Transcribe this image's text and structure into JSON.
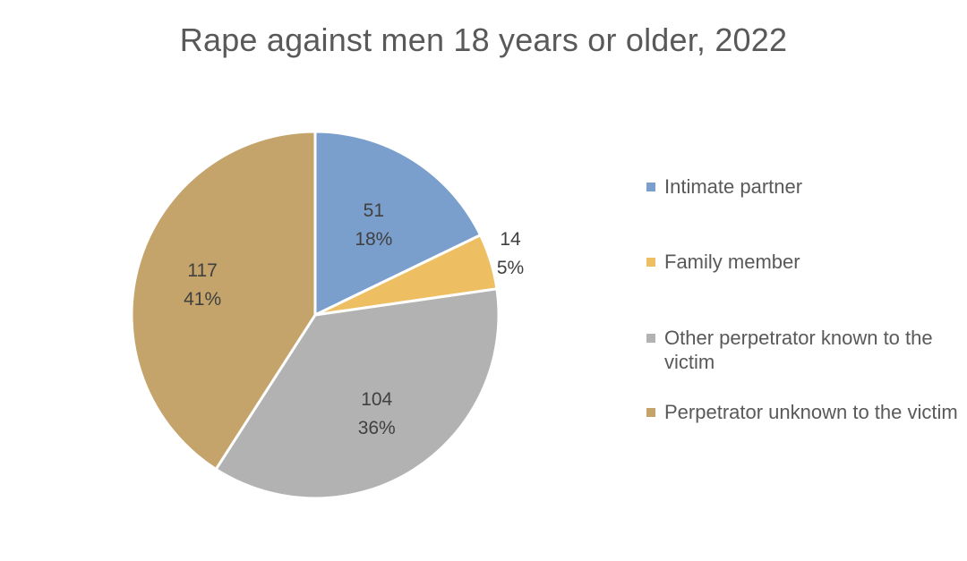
{
  "chart_data": {
    "type": "pie",
    "title": "Rape against men 18 years or older, 2022",
    "legend_position": "right",
    "slices": [
      {
        "label": "Intimate partner",
        "value": 51,
        "percent": "18%",
        "color": "#7A9FCD"
      },
      {
        "label": "Family member",
        "value": 14,
        "percent": "5%",
        "color": "#EEBE63"
      },
      {
        "label": "Other perpetrator known to the victim",
        "value": 104,
        "percent": "36%",
        "color": "#B2B2B2"
      },
      {
        "label": "Perpetrator unknown to the victim",
        "value": 117,
        "percent": "41%",
        "color": "#C4A46B"
      }
    ]
  }
}
